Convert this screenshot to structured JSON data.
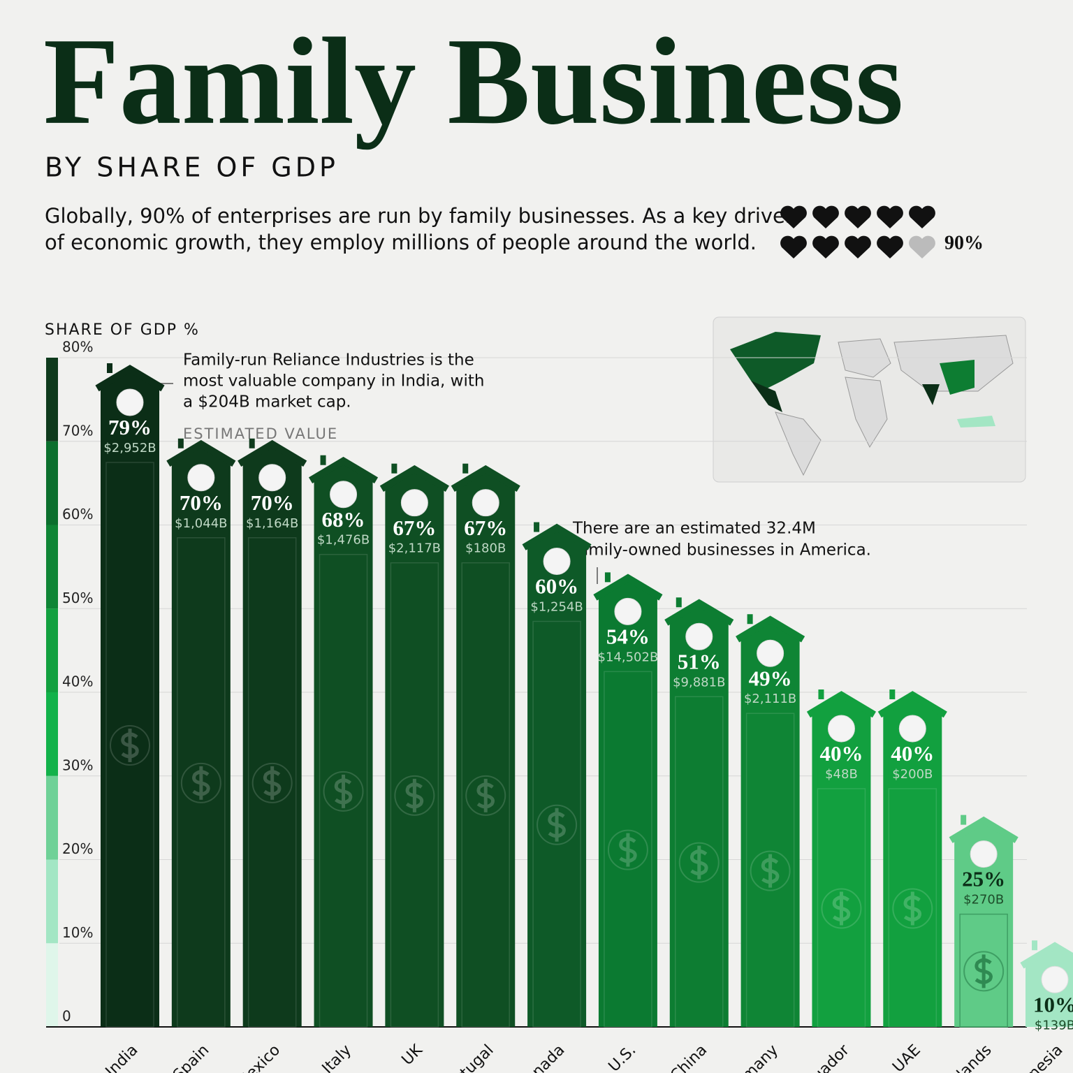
{
  "chart_data": {
    "type": "bar",
    "title": "Family Business",
    "subtitle": "BY SHARE OF GDP",
    "intro": [
      "Globally, 90% of enterprises are run by family businesses. As a key driver",
      "of economic growth, they employ millions of people around the world."
    ],
    "stat": {
      "value": 90,
      "label": "90%"
    },
    "y_label": "SHARE OF GDP %",
    "annotations": [
      "Family-run Reliance Industries is the",
      "most valuable company in India, with",
      "a $204B market cap.",
      "ESTIMATED VALUE",
      "There are an estimated 32.4M",
      "family-owned businesses in America."
    ],
    "categories": [
      "India",
      "Spain",
      "Mexico",
      "Italy",
      "UK",
      "Portugal",
      "Canada",
      "U.S.",
      "China",
      "Germany",
      "Ecuador",
      "UAE",
      "Netherlands",
      "Indonesia"
    ],
    "values": [
      79,
      70,
      70,
      68,
      67,
      67,
      60,
      54,
      51,
      49,
      40,
      40,
      25,
      10
    ],
    "value_labels": [
      "79%",
      "70%",
      "70%",
      "68%",
      "67%",
      "67%",
      "60%",
      "54%",
      "51%",
      "49%",
      "40%",
      "40%",
      "25%",
      "10%"
    ],
    "estimated_value_labels": [
      "$2,952B",
      "$1,044B",
      "$1,164B",
      "$1,476B",
      "$2,117B",
      "$180B",
      "$1,254B",
      "$14,502B",
      "$9,881B",
      "$2,111B",
      "$48B",
      "$200B",
      "$270B",
      "$139B"
    ],
    "colors": [
      "#0b2e17",
      "#0e3a1c",
      "#0e3a1c",
      "#0f4f23",
      "#0f4f23",
      "#0f4f23",
      "#0e5a28",
      "#0b7a31",
      "#0d7d32",
      "#0f8535",
      "#12a03f",
      "#12a03f",
      "#5fcb87",
      "#a3e6c4"
    ],
    "ylim": [
      0,
      80
    ],
    "yticks": [
      0,
      {
        "value": 10,
        "label": "10%"
      },
      {
        "value": 20,
        "label": "20%"
      },
      {
        "value": 30,
        "label": "30%"
      },
      {
        "value": 40,
        "label": "40%"
      },
      {
        "value": 50,
        "label": "50%"
      },
      {
        "value": 60,
        "label": "60%"
      },
      {
        "value": 70,
        "label": "70%"
      },
      {
        "value": 80,
        "label": "80%"
      }
    ],
    "grid": true
  }
}
